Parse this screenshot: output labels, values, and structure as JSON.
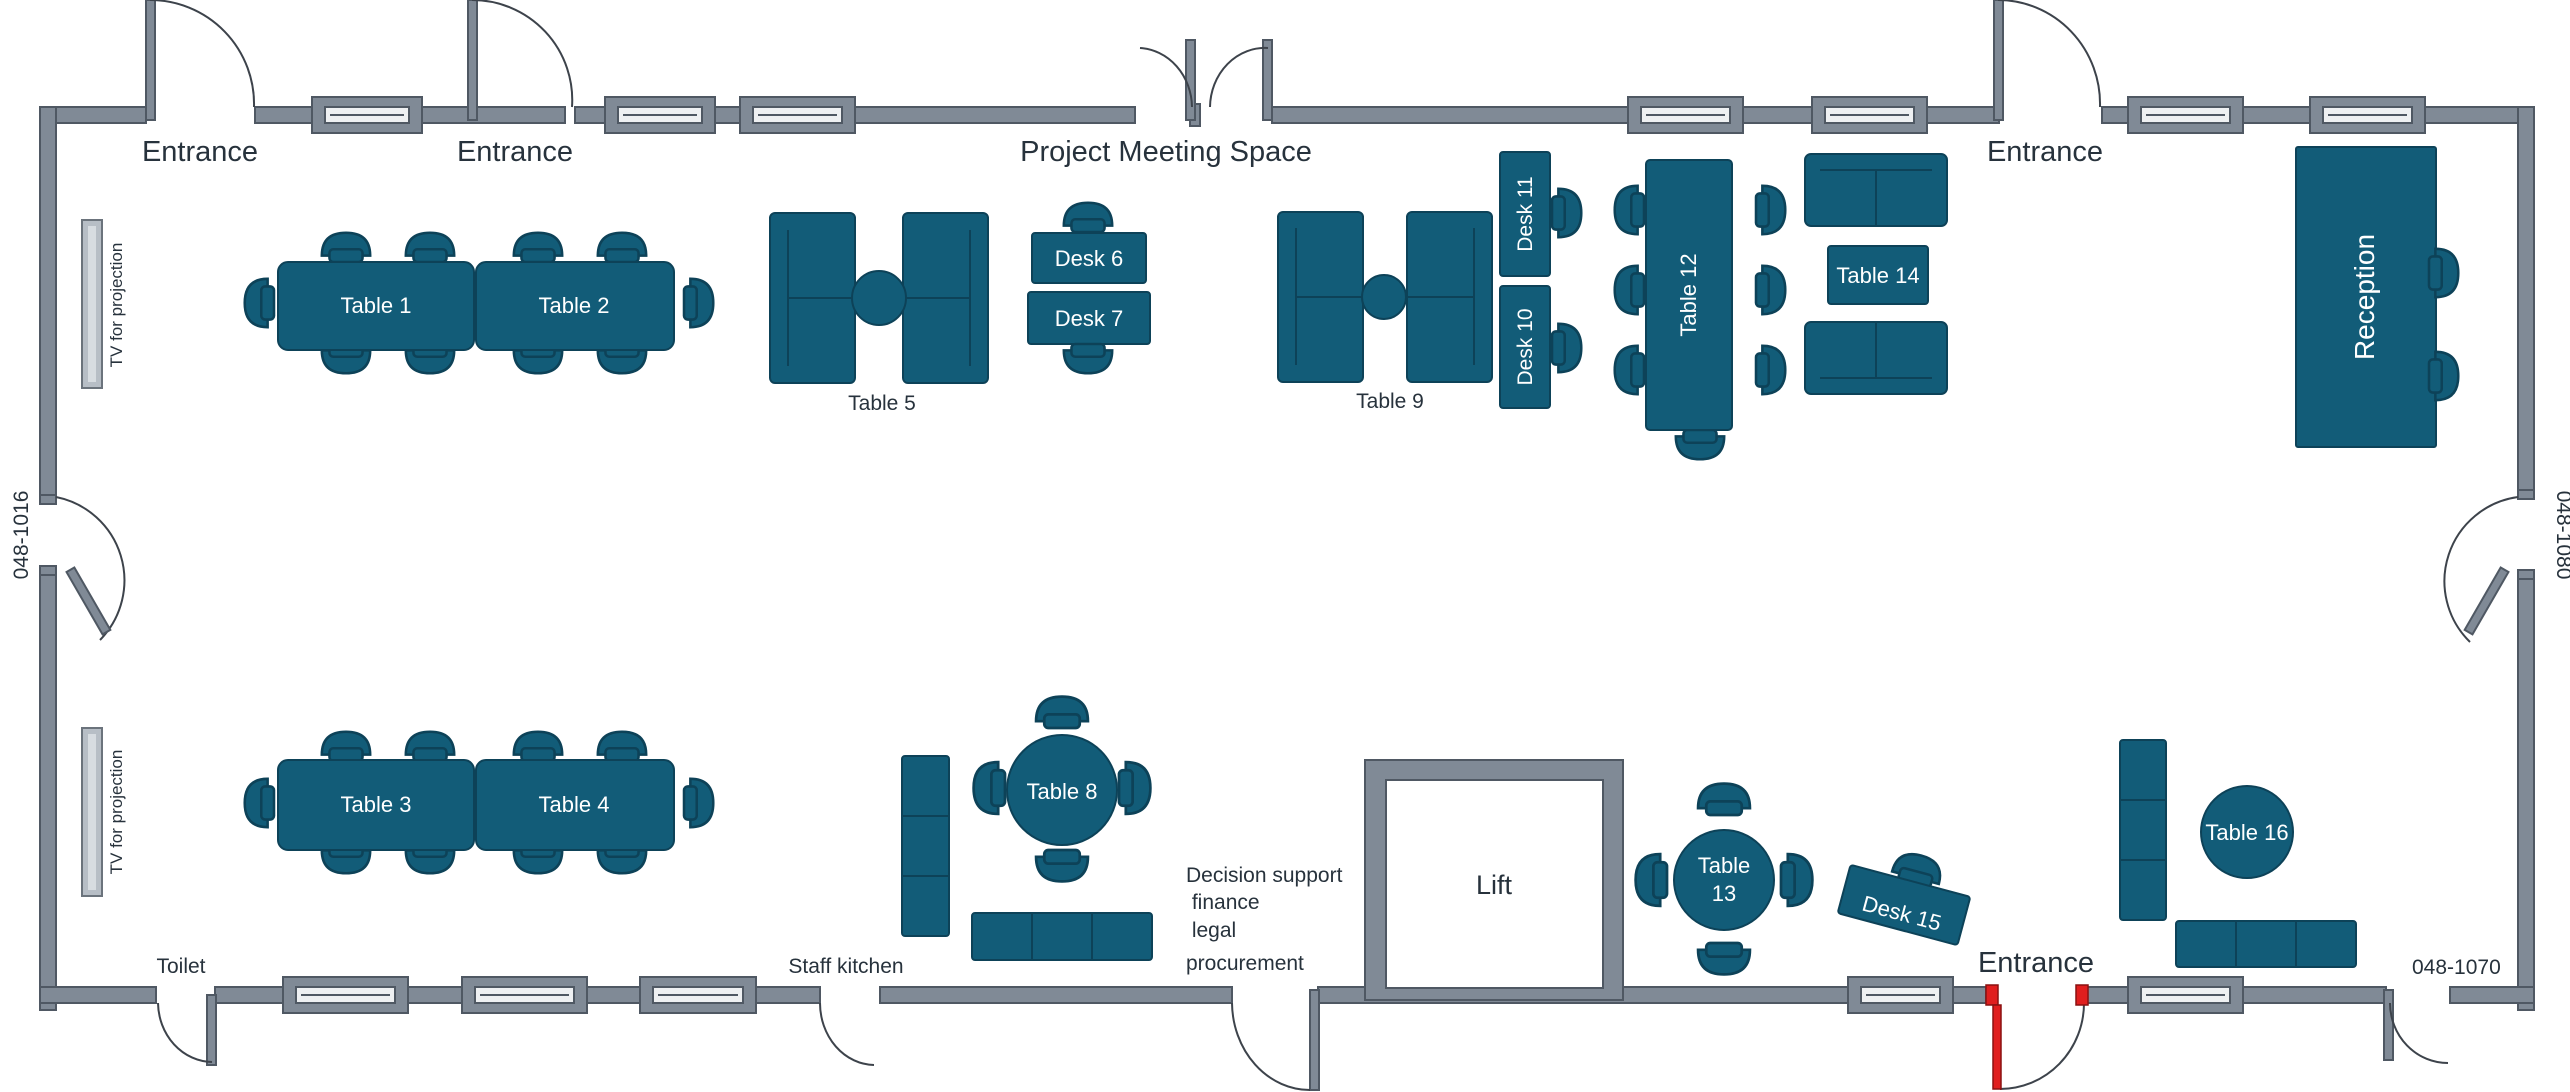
{
  "colors": {
    "furniture": "#125c78",
    "furniture_stroke": "#0d4258",
    "wall": "#808a96",
    "wall_stroke": "#4f5863",
    "door_swing": "#3d434b",
    "accent_door": "#e01e1e",
    "label_dark": "#27323c",
    "label_light": "#ffffff"
  },
  "room_labels": {
    "entrance_1": "Entrance",
    "entrance_2": "Entrance",
    "entrance_3": "Entrance",
    "entrance_4": "Entrance",
    "project_meeting": "Project Meeting Space",
    "toilet": "Toilet",
    "staff_kitchen": "Staff kitchen",
    "decision_support": "Decision support",
    "finance": " finance",
    "legal": " legal",
    "procurement": "procurement",
    "lift": "Lift",
    "room_left": "048-1016",
    "room_right": "048-1080",
    "room_bottom_right": "048-1070",
    "tv_top": "TV for projection",
    "tv_bottom": "TV for projection"
  },
  "tables": {
    "t1": "Table 1",
    "t2": "Table 2",
    "t3": "Table 3",
    "t4": "Table 4",
    "t5": "Table 5",
    "t8": "Table 8",
    "t9": "Table 9",
    "t12": "Table 12",
    "t13a": "Table",
    "t13b": "13",
    "t14": "Table 14",
    "t16": "Table 16",
    "reception": "Reception"
  },
  "desks": {
    "d6": "Desk 6",
    "d7": "Desk 7",
    "d10": "Desk 10",
    "d11": "Desk 11",
    "d15": "Desk 15"
  }
}
